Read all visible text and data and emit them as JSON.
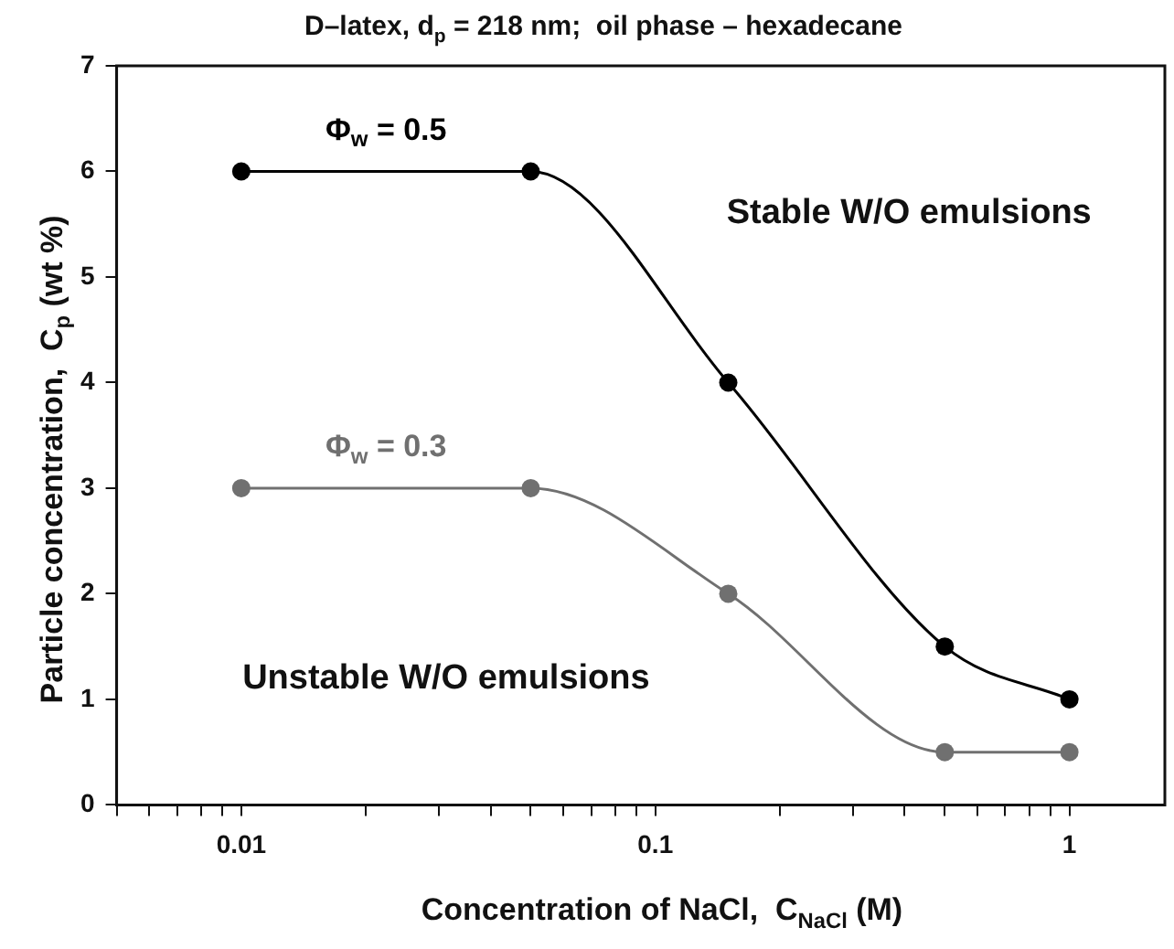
{
  "chart_data": {
    "type": "line",
    "title": "D–latex, d$_{p}$ = 218 nm;  oil phase – hexadecane",
    "xlabel": "Concentration of NaCl,  C$_{NaCl}$ (M)",
    "ylabel": "Particle concentration,  C$_{p}$ (wt %)",
    "x": [
      0.01,
      0.05,
      0.15,
      0.5,
      1
    ],
    "log": "x",
    "marker": "circle",
    "series": [
      {
        "name": "Φ$_{w}$ = 0.5",
        "color": "#000000",
        "values": [
          6,
          6,
          4,
          1.5,
          1
        ]
      },
      {
        "name": "Φ$_{w}$ = 0.3",
        "color": "#707070",
        "values": [
          3,
          3,
          2,
          0.5,
          0.5
        ]
      }
    ],
    "annotations": [
      "Stable W/O emulsions",
      "Unstable W/O emulsions"
    ],
    "xlim": [
      0.005,
      1.7
    ],
    "ylim": [
      0,
      7
    ],
    "xticks": [
      {
        "value": 0.005,
        "label": null
      },
      {
        "value": 0.006,
        "label": null
      },
      {
        "value": 0.007,
        "label": null
      },
      {
        "value": 0.008,
        "label": null
      },
      {
        "value": 0.009,
        "label": null
      },
      0.01,
      {
        "value": 0.02,
        "label": null
      },
      {
        "value": 0.03,
        "label": null
      },
      {
        "value": 0.04,
        "label": null
      },
      {
        "value": 0.05,
        "label": null
      },
      {
        "value": 0.06,
        "label": null
      },
      {
        "value": 0.07,
        "label": null
      },
      {
        "value": 0.08,
        "label": null
      },
      {
        "value": 0.09,
        "label": null
      },
      0.1,
      {
        "value": 0.2,
        "label": null
      },
      {
        "value": 0.3,
        "label": null
      },
      {
        "value": 0.4,
        "label": null
      },
      {
        "value": 0.5,
        "label": null
      },
      {
        "value": 0.6,
        "label": null
      },
      {
        "value": 0.7,
        "label": null
      },
      {
        "value": 0.8,
        "label": null
      },
      {
        "value": 0.9,
        "label": null
      },
      1
    ],
    "yticks": [
      0,
      1,
      2,
      3,
      4,
      5,
      6,
      7
    ],
    "grid": false,
    "legend": false
  }
}
